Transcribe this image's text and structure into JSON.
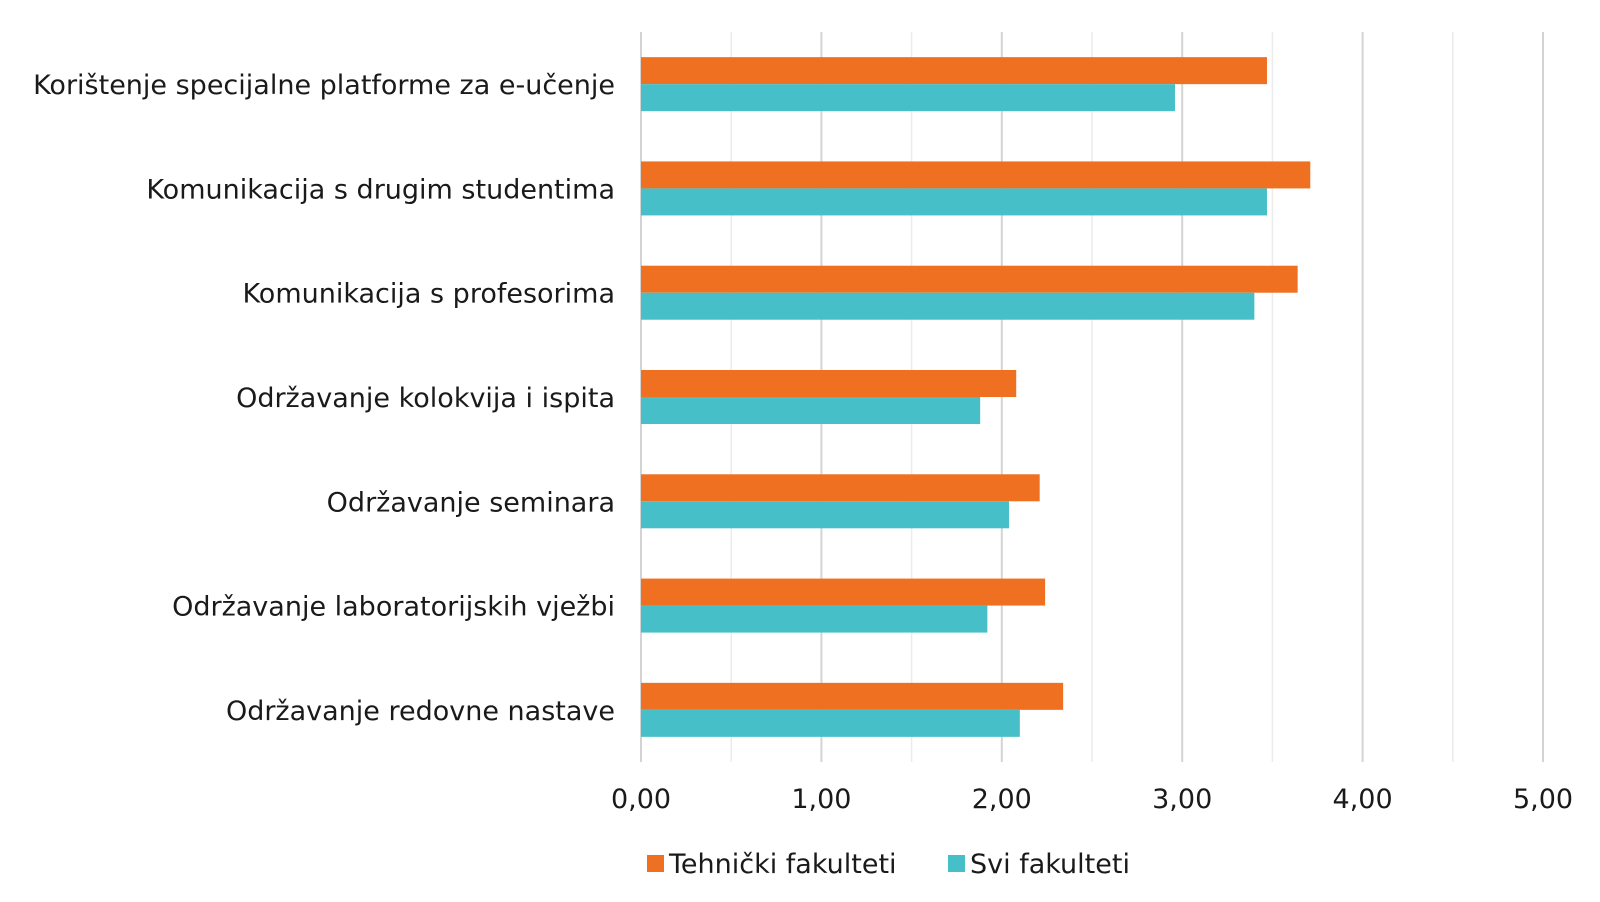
{
  "chart_data": {
    "type": "bar",
    "orientation": "horizontal",
    "categories": [
      "Korištenje specijalne platforme za e-učenje",
      "Komunikacija s drugim studentima",
      "Komunikacija s profesorima",
      "Održavanje kolokvija i ispita",
      "Održavanje seminara",
      "Održavanje laboratorijskih vježbi",
      "Održavanje redovne nastave"
    ],
    "series": [
      {
        "name": "Tehnički fakulteti",
        "color": "#f07022",
        "values": [
          3.47,
          3.71,
          3.64,
          2.08,
          2.21,
          2.24,
          2.34
        ]
      },
      {
        "name": "Svi fakulteti",
        "color": "#46bfc8",
        "values": [
          2.96,
          3.47,
          3.4,
          1.88,
          2.04,
          1.92,
          2.1
        ]
      }
    ],
    "xlim": [
      0,
      5
    ],
    "xticks": [
      0,
      1,
      2,
      3,
      4,
      5
    ],
    "tick_labels": [
      "0,00",
      "1,00",
      "2,00",
      "3,00",
      "4,00",
      "5,00"
    ],
    "grid": true,
    "legend": "bottom",
    "title": "",
    "xlabel": "",
    "ylabel": ""
  }
}
